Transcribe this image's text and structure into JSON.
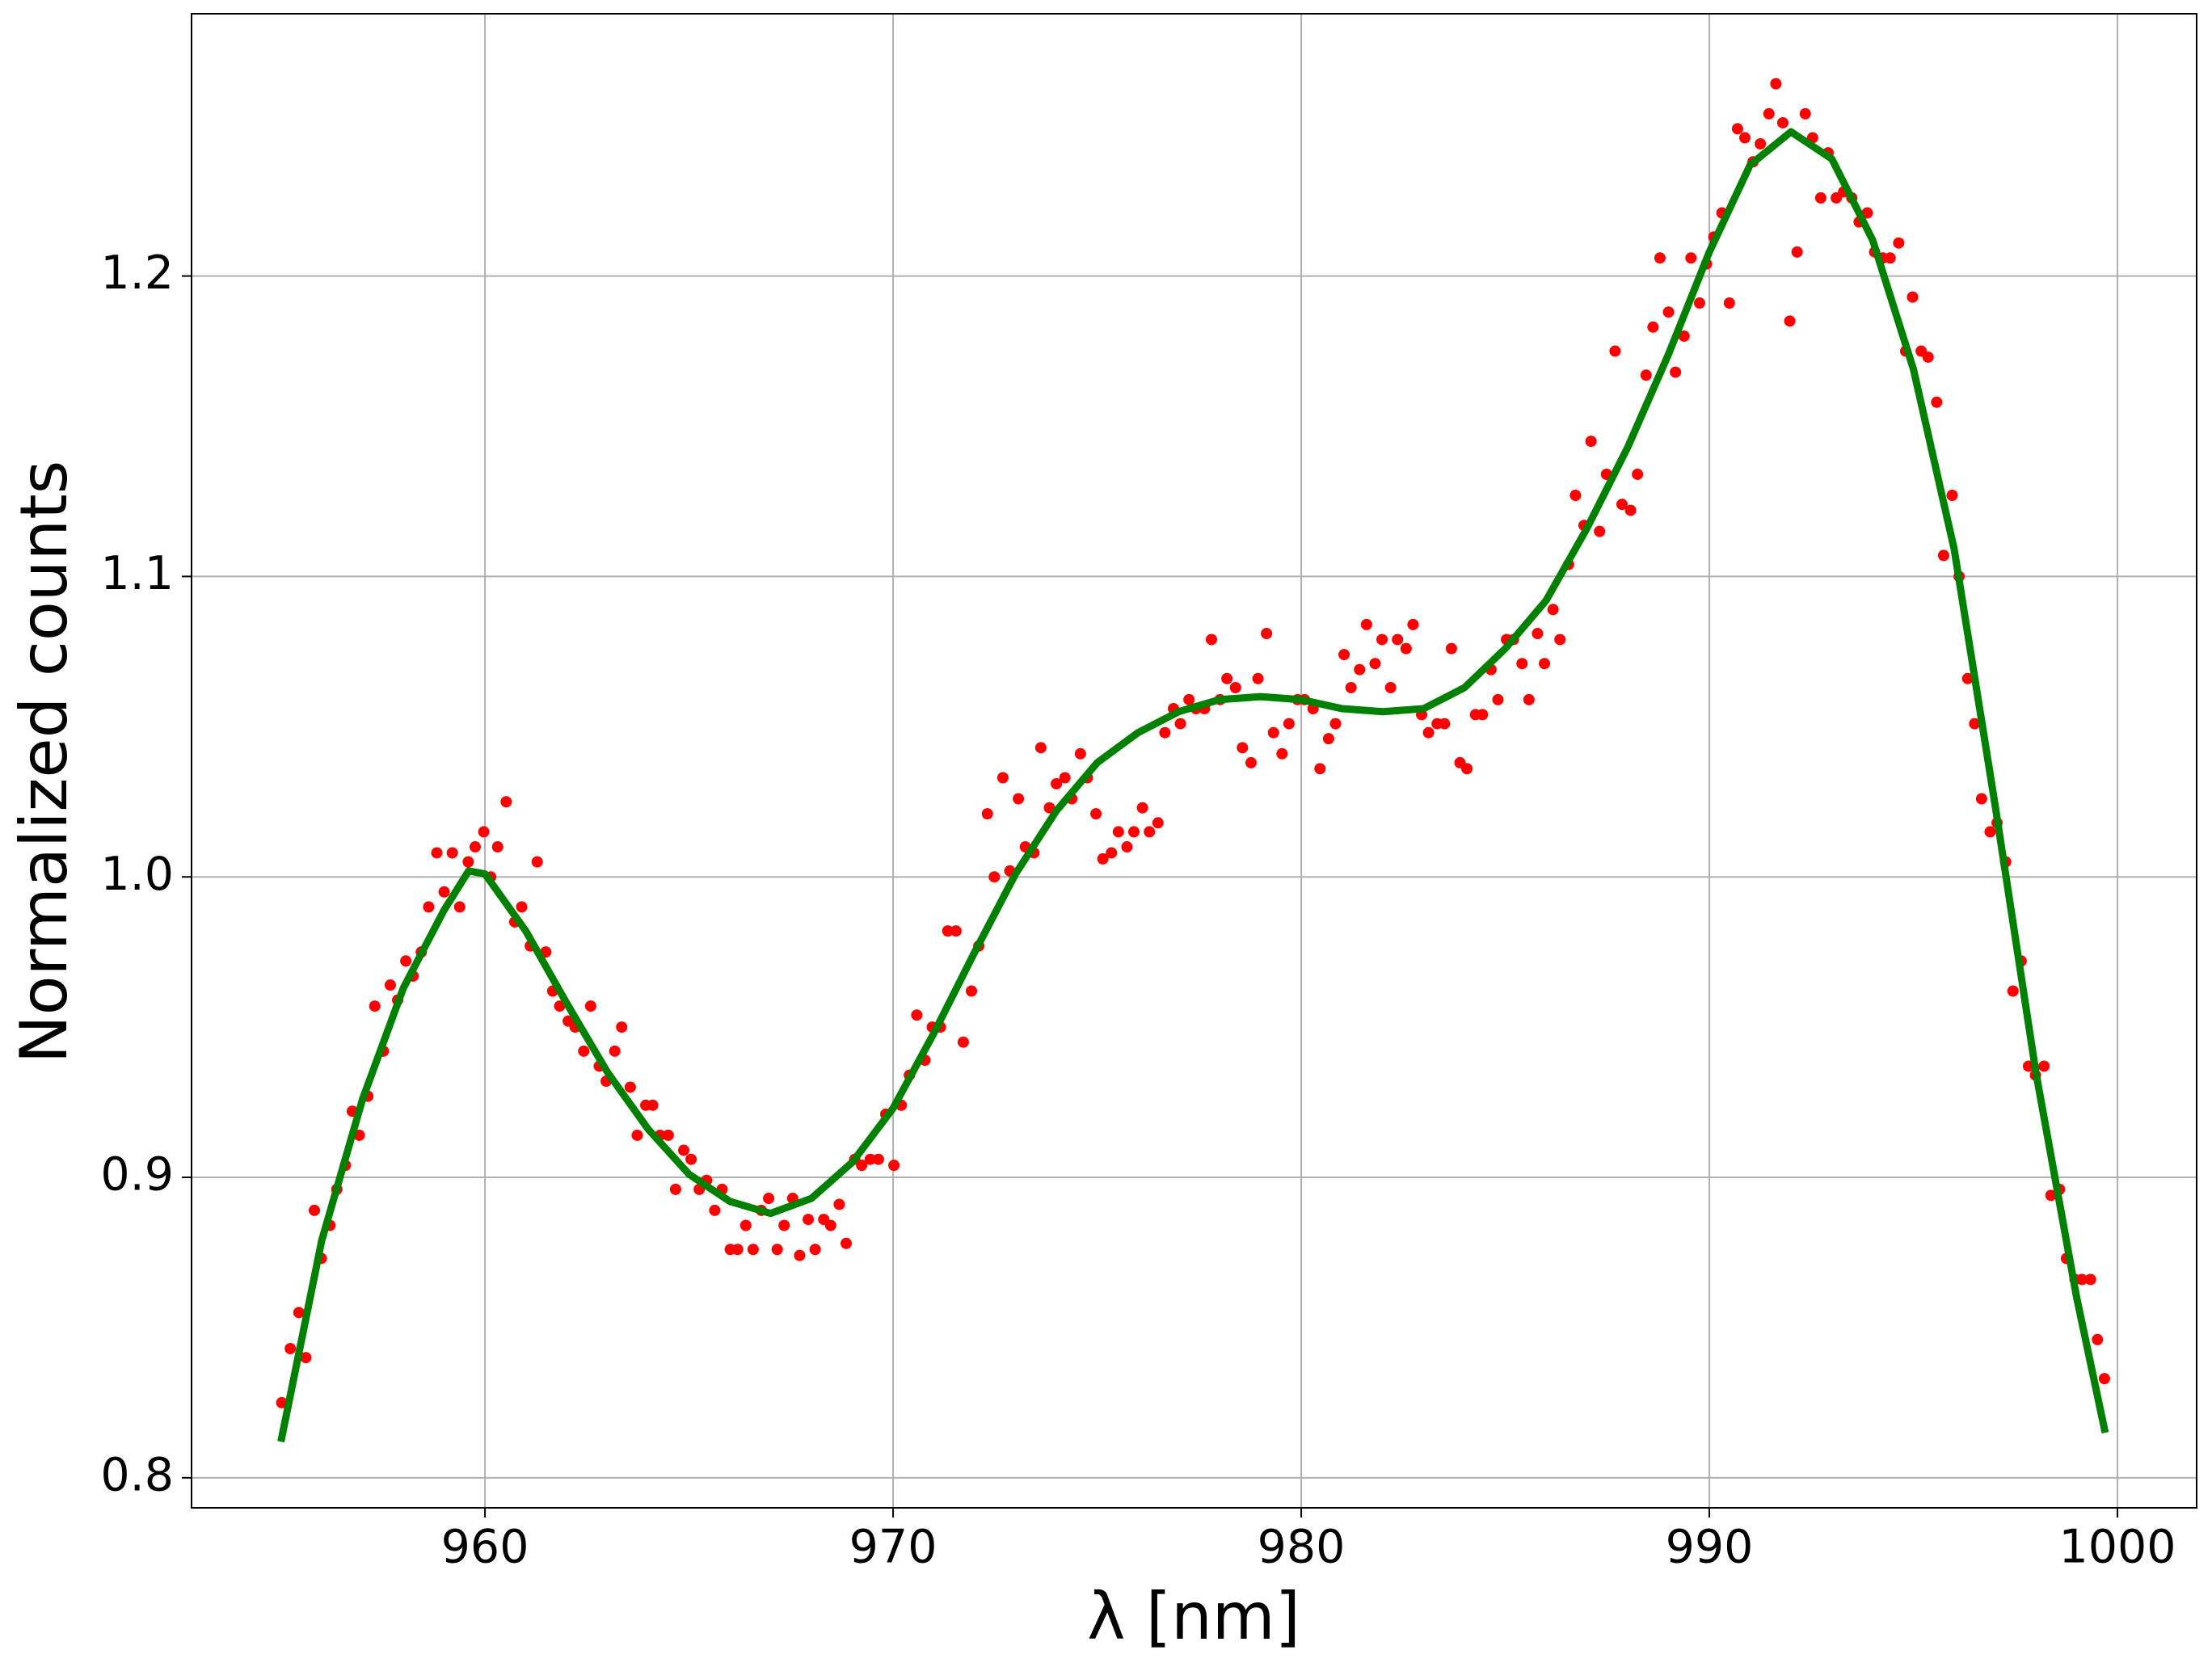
{
  "chart_data": {
    "type": "scatter",
    "xlabel": "λ [nm]",
    "ylabel": "Normalized counts",
    "xlim": [
      952.81,
      1001.94
    ],
    "ylim": [
      0.79,
      1.2873
    ],
    "xticks": [
      960,
      970,
      980,
      990,
      1000
    ],
    "yticks": [
      0.8,
      0.9,
      {
        "value": 1,
        "label": "1.0"
      },
      1.1,
      1.2
    ],
    "grid": true,
    "series": [
      {
        "type": "scatter",
        "color": "#ff0000",
        "x": [
          955.02,
          955.23,
          955.44,
          955.61,
          955.82,
          955.99,
          956.2,
          956.37,
          956.58,
          956.75,
          956.92,
          957.13,
          957.3,
          957.51,
          957.68,
          957.86,
          958.06,
          958.24,
          958.44,
          958.62,
          958.82,
          959.0,
          959.2,
          959.38,
          959.59,
          959.76,
          959.97,
          960.14,
          960.31,
          960.52,
          960.73,
          960.9,
          961.11,
          961.28,
          961.49,
          961.66,
          961.83,
          962.04,
          962.21,
          962.42,
          962.59,
          962.8,
          962.97,
          963.18,
          963.35,
          963.56,
          963.73,
          963.94,
          964.11,
          964.29,
          964.49,
          964.67,
          964.87,
          965.05,
          965.25,
          965.43,
          965.63,
          965.81,
          966.01,
          966.19,
          966.39,
          966.57,
          966.77,
          966.95,
          967.16,
          967.33,
          967.54,
          967.71,
          967.92,
          968.09,
          968.3,
          968.47,
          968.68,
          968.85,
          969.06,
          969.23,
          969.44,
          969.64,
          969.82,
          970.02,
          970.2,
          970.4,
          970.58,
          970.78,
          970.96,
          971.16,
          971.34,
          971.54,
          971.72,
          971.92,
          972.1,
          972.31,
          972.48,
          972.69,
          972.86,
          973.07,
          973.24,
          973.45,
          973.62,
          973.83,
          974.0,
          974.21,
          974.38,
          974.59,
          974.76,
          974.97,
          975.14,
          975.35,
          975.52,
          975.73,
          975.9,
          976.11,
          976.28,
          976.49,
          976.66,
          976.87,
          977.04,
          977.25,
          977.42,
          977.63,
          977.8,
          978.01,
          978.18,
          978.39,
          978.56,
          978.77,
          978.94,
          979.15,
          979.32,
          979.53,
          979.7,
          979.91,
          980.08,
          980.29,
          980.46,
          980.67,
          980.84,
          981.05,
          981.22,
          981.43,
          981.6,
          981.81,
          981.98,
          982.19,
          982.36,
          982.57,
          982.74,
          982.95,
          983.12,
          983.33,
          983.51,
          983.68,
          983.89,
          984.06,
          984.27,
          984.44,
          984.65,
          984.82,
          985.03,
          985.2,
          985.41,
          985.58,
          985.79,
          985.96,
          986.17,
          986.34,
          986.55,
          986.72,
          986.93,
          987.1,
          987.31,
          987.48,
          987.69,
          987.86,
          988.07,
          988.24,
          988.45,
          988.62,
          988.79,
          989.0,
          989.17,
          989.38,
          989.55,
          989.76,
          989.93,
          990.11,
          990.31,
          990.49,
          990.69,
          990.87,
          991.07,
          991.25,
          991.46,
          991.63,
          991.8,
          991.97,
          992.15,
          992.35,
          992.53,
          992.73,
          992.91,
          993.11,
          993.29,
          993.49,
          993.67,
          993.87,
          994.05,
          994.25,
          994.43,
          994.64,
          994.81,
          994.98,
          995.19,
          995.36,
          995.57,
          995.74,
          995.95,
          996.12,
          996.33,
          996.5,
          996.67,
          996.88,
          997.05,
          997.26,
          997.44,
          997.64,
          997.82,
          997.99,
          998.2,
          998.37,
          998.58,
          998.75,
          998.96,
          999.13,
          999.34,
          999.51,
          999.68
        ],
        "values": [
          0.825,
          0.843,
          0.855,
          0.84,
          0.889,
          0.873,
          0.884,
          0.896,
          0.904,
          0.922,
          0.914,
          0.927,
          0.957,
          0.942,
          0.964,
          0.959,
          0.972,
          0.967,
          0.975,
          0.99,
          1.008,
          0.995,
          1.008,
          0.99,
          1.005,
          1.01,
          1.015,
          1.0,
          1.01,
          1.025,
          0.985,
          0.99,
          0.977,
          1.005,
          0.975,
          0.962,
          0.957,
          0.952,
          0.95,
          0.942,
          0.957,
          0.937,
          0.932,
          0.942,
          0.95,
          0.93,
          0.914,
          0.924,
          0.924,
          0.914,
          0.914,
          0.896,
          0.909,
          0.906,
          0.896,
          0.899,
          0.889,
          0.896,
          0.876,
          0.876,
          0.884,
          0.876,
          0.889,
          0.893,
          0.876,
          0.884,
          0.893,
          0.874,
          0.886,
          0.876,
          0.886,
          0.884,
          0.891,
          0.878,
          0.906,
          0.904,
          0.906,
          0.906,
          0.921,
          0.904,
          0.924,
          0.934,
          0.954,
          0.939,
          0.95,
          0.95,
          0.982,
          0.982,
          0.945,
          0.962,
          0.977,
          1.021,
          1.0,
          1.033,
          1.002,
          1.026,
          1.01,
          1.008,
          1.043,
          1.023,
          1.031,
          1.033,
          1.026,
          1.041,
          1.033,
          1.021,
          1.006,
          1.008,
          1.015,
          1.01,
          1.015,
          1.023,
          1.015,
          1.018,
          1.048,
          1.056,
          1.051,
          1.059,
          1.056,
          1.056,
          1.079,
          1.059,
          1.066,
          1.063,
          1.043,
          1.038,
          1.066,
          1.081,
          1.048,
          1.041,
          1.051,
          1.059,
          1.059,
          1.056,
          1.036,
          1.046,
          1.051,
          1.074,
          1.063,
          1.069,
          1.084,
          1.071,
          1.079,
          1.063,
          1.079,
          1.076,
          1.084,
          1.054,
          1.048,
          1.051,
          1.051,
          1.076,
          1.038,
          1.036,
          1.054,
          1.054,
          1.069,
          1.059,
          1.079,
          1.079,
          1.071,
          1.059,
          1.081,
          1.071,
          1.089,
          1.079,
          1.104,
          1.127,
          1.117,
          1.145,
          1.115,
          1.134,
          1.175,
          1.124,
          1.122,
          1.134,
          1.167,
          1.183,
          1.206,
          1.188,
          1.168,
          1.18,
          1.206,
          1.191,
          1.204,
          1.213,
          1.221,
          1.191,
          1.249,
          1.246,
          1.238,
          1.244,
          1.254,
          1.264,
          1.251,
          1.185,
          1.208,
          1.254,
          1.246,
          1.226,
          1.241,
          1.226,
          1.228,
          1.226,
          1.218,
          1.221,
          1.208,
          1.206,
          1.206,
          1.211,
          1.175,
          1.193,
          1.175,
          1.173,
          1.158,
          1.107,
          1.127,
          1.1,
          1.066,
          1.051,
          1.026,
          1.015,
          1.018,
          1.005,
          0.962,
          0.972,
          0.937,
          0.934,
          0.937,
          0.894,
          0.896,
          0.873,
          0.866,
          0.866,
          0.866,
          0.846,
          0.833
        ]
      },
      {
        "type": "line",
        "color": "#008000",
        "x": [
          955,
          956,
          957,
          958,
          959,
          959.6,
          960,
          961,
          962,
          963,
          964,
          965,
          966,
          967,
          968,
          969,
          970,
          971,
          972,
          973,
          974,
          975,
          976,
          977,
          978,
          979,
          980,
          981,
          982,
          983,
          984,
          985,
          986,
          987,
          988,
          989,
          990,
          991,
          992,
          993,
          994,
          995,
          996,
          997,
          998,
          999,
          999.7
        ],
        "values": [
          0.812,
          0.879,
          0.926,
          0.963,
          0.989,
          1.002,
          1.001,
          0.982,
          0.958,
          0.935,
          0.916,
          0.901,
          0.892,
          0.888,
          0.893,
          0.905,
          0.923,
          0.948,
          0.975,
          1.001,
          1.022,
          1.038,
          1.048,
          1.055,
          1.059,
          1.06,
          1.059,
          1.056,
          1.055,
          1.056,
          1.063,
          1.076,
          1.092,
          1.116,
          1.143,
          1.174,
          1.208,
          1.237,
          1.248,
          1.239,
          1.212,
          1.169,
          1.109,
          1.024,
          0.935,
          0.86,
          0.815
        ]
      }
    ]
  }
}
